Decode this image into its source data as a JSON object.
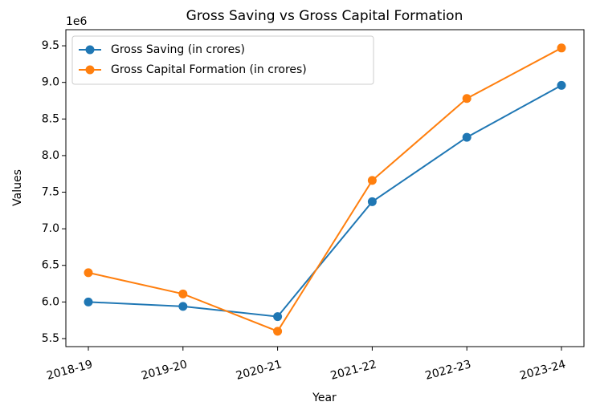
{
  "chart_data": {
    "type": "line",
    "title": "Gross Saving vs Gross Capital Formation",
    "xlabel": "Year",
    "ylabel": "Values",
    "y_offset_label": "1e6",
    "categories": [
      "2018-19",
      "2019-20",
      "2020-21",
      "2021-22",
      "2022-23",
      "2023-24"
    ],
    "series": [
      {
        "name": "Gross Saving (in crores)",
        "color": "#1f77b4",
        "values": [
          6.0,
          5.94,
          5.8,
          7.37,
          8.25,
          8.96
        ]
      },
      {
        "name": "Gross Capital Formation (in crores)",
        "color": "#ff7f0e",
        "values": [
          6.4,
          6.11,
          5.6,
          7.66,
          8.78,
          9.47
        ]
      }
    ],
    "ylim": [
      5.39,
      9.72
    ],
    "yticks": [
      5.5,
      {
        "value": 6,
        "label": "6.0"
      },
      6.5,
      {
        "value": 7,
        "label": "7.0"
      },
      7.5,
      {
        "value": 8,
        "label": "8.0"
      },
      8.5,
      {
        "value": 9,
        "label": "9.0"
      },
      9.5
    ],
    "legend": "upper left",
    "grid": false
  }
}
